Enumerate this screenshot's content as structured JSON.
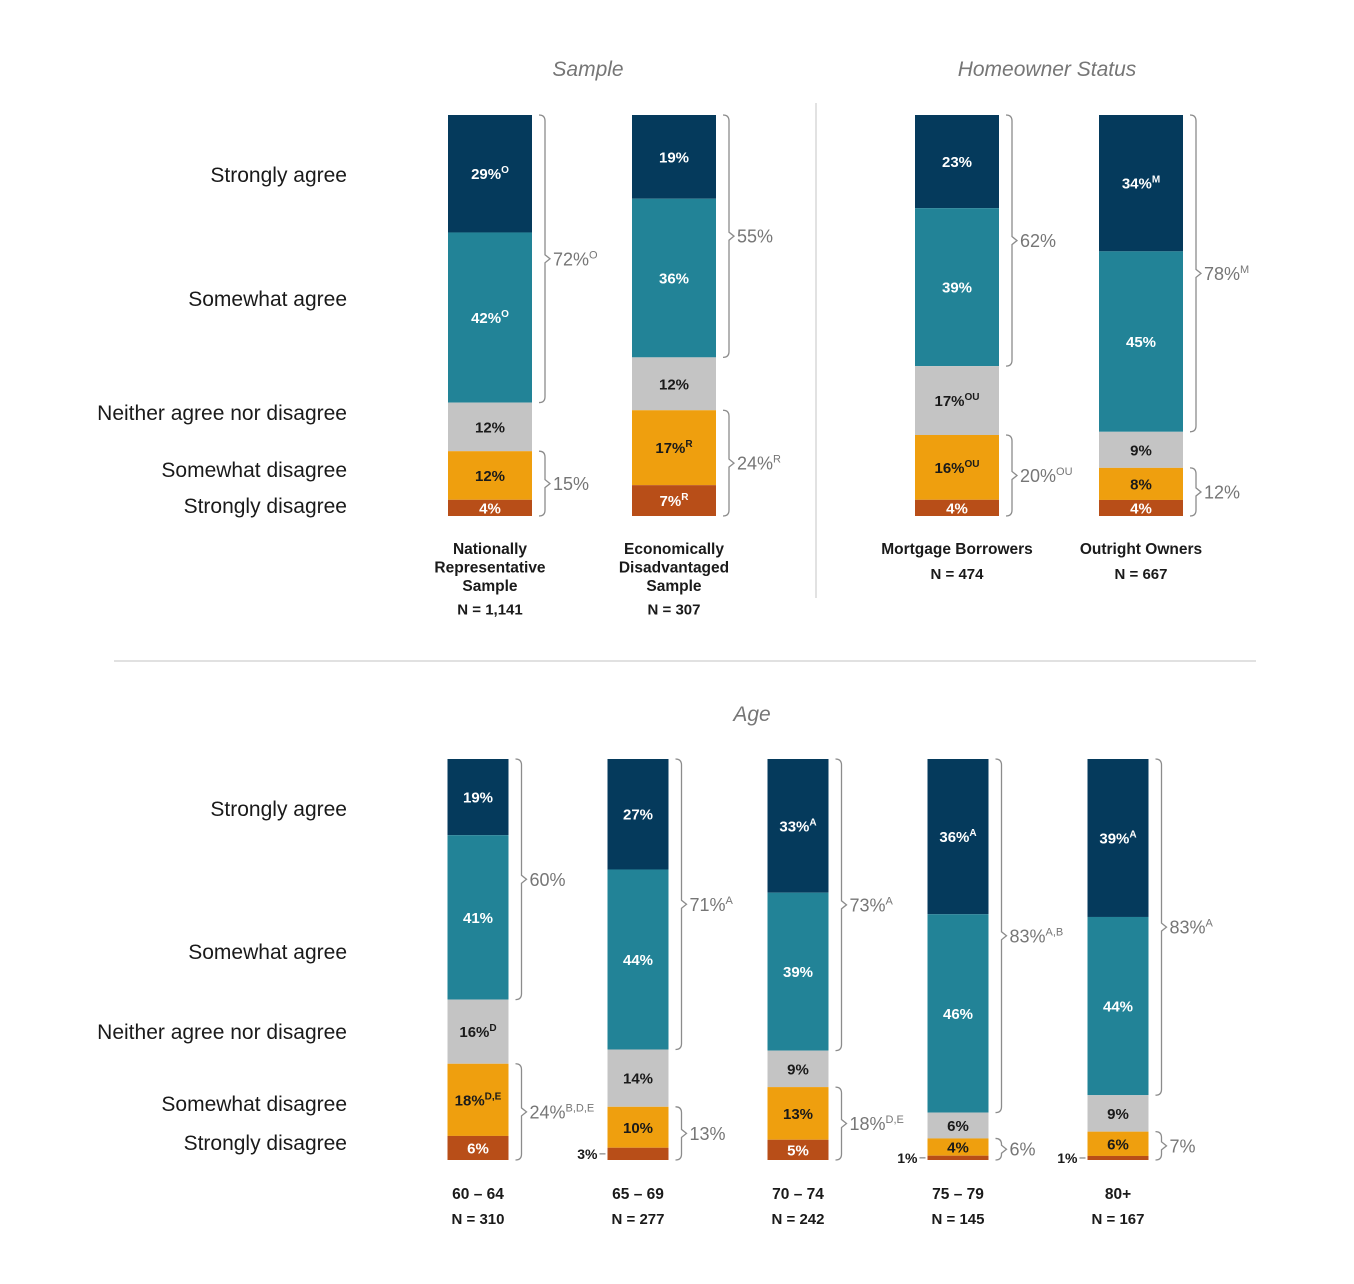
{
  "colors": {
    "strongly_agree": "#053a5c",
    "somewhat_agree": "#228397",
    "neither": "#c4c4c4",
    "somewhat_disagree": "#ef9f0e",
    "strongly_disagree": "#b84e18",
    "label_light": "#ffffff",
    "label_dark": "#1a1a1a"
  },
  "row_labels": {
    "strongly_agree": "Strongly agree",
    "somewhat_agree": "Somewhat agree",
    "neither": "Neither agree nor disagree",
    "somewhat_disagree": "Somewhat disagree",
    "strongly_disagree": "Strongly disagree"
  },
  "chart_data": [
    {
      "type": "bar",
      "stacked": true,
      "title": "Sample",
      "series_order": [
        "Strongly agree",
        "Somewhat agree",
        "Neither agree nor disagree",
        "Somewhat disagree",
        "Strongly disagree"
      ],
      "bars": [
        {
          "label": "Nationally Representative Sample",
          "n": "N = 1,141",
          "segments": [
            {
              "value": 29,
              "text": "29%",
              "sup": "O"
            },
            {
              "value": 42,
              "text": "42%",
              "sup": "O"
            },
            {
              "value": 12,
              "text": "12%",
              "sup": ""
            },
            {
              "value": 12,
              "text": "12%",
              "sup": ""
            },
            {
              "value": 4,
              "text": "4%",
              "sup": ""
            }
          ],
          "agree_total": {
            "text": "72%",
            "sup": "O"
          },
          "disagree_total": {
            "text": "15%",
            "sup": ""
          }
        },
        {
          "label": "Economically Disadvantaged Sample",
          "n": "N = 307",
          "segments": [
            {
              "value": 19,
              "text": "19%",
              "sup": ""
            },
            {
              "value": 36,
              "text": "36%",
              "sup": ""
            },
            {
              "value": 12,
              "text": "12%",
              "sup": ""
            },
            {
              "value": 17,
              "text": "17%",
              "sup": "R"
            },
            {
              "value": 7,
              "text": "7%",
              "sup": "R"
            }
          ],
          "agree_total": {
            "text": "55%",
            "sup": ""
          },
          "disagree_total": {
            "text": "24%",
            "sup": "R"
          }
        }
      ]
    },
    {
      "type": "bar",
      "stacked": true,
      "title": "Homeowner Status",
      "bars": [
        {
          "label": "Mortgage Borrowers",
          "n": "N = 474",
          "segments": [
            {
              "value": 23,
              "text": "23%",
              "sup": ""
            },
            {
              "value": 39,
              "text": "39%",
              "sup": ""
            },
            {
              "value": 17,
              "text": "17%",
              "sup": "OU"
            },
            {
              "value": 16,
              "text": "16%",
              "sup": "OU"
            },
            {
              "value": 4,
              "text": "4%",
              "sup": ""
            }
          ],
          "agree_total": {
            "text": "62%",
            "sup": ""
          },
          "disagree_total": {
            "text": "20%",
            "sup": "OU"
          }
        },
        {
          "label": "Outright Owners",
          "n": "N = 667",
          "segments": [
            {
              "value": 34,
              "text": "34%",
              "sup": "M"
            },
            {
              "value": 45,
              "text": "45%",
              "sup": ""
            },
            {
              "value": 9,
              "text": "9%",
              "sup": ""
            },
            {
              "value": 8,
              "text": "8%",
              "sup": ""
            },
            {
              "value": 4,
              "text": "4%",
              "sup": ""
            }
          ],
          "agree_total": {
            "text": "78%",
            "sup": "M"
          },
          "disagree_total": {
            "text": "12%",
            "sup": ""
          }
        }
      ]
    },
    {
      "type": "bar",
      "stacked": true,
      "title": "Age",
      "bars": [
        {
          "label": "60 – 64",
          "n": "N = 310",
          "segments": [
            {
              "value": 19,
              "text": "19%",
              "sup": ""
            },
            {
              "value": 41,
              "text": "41%",
              "sup": ""
            },
            {
              "value": 16,
              "text": "16%",
              "sup": "D"
            },
            {
              "value": 18,
              "text": "18%",
              "sup": "D,E"
            },
            {
              "value": 6,
              "text": "6%",
              "sup": ""
            }
          ],
          "agree_total": {
            "text": "60%",
            "sup": ""
          },
          "disagree_total": {
            "text": "24%",
            "sup": "B,D,E"
          }
        },
        {
          "label": "65 – 69",
          "n": "N = 277",
          "segments": [
            {
              "value": 27,
              "text": "27%",
              "sup": ""
            },
            {
              "value": 44,
              "text": "44%",
              "sup": ""
            },
            {
              "value": 14,
              "text": "14%",
              "sup": ""
            },
            {
              "value": 10,
              "text": "10%",
              "sup": ""
            },
            {
              "value": 3,
              "text": "3%",
              "sup": ""
            }
          ],
          "agree_total": {
            "text": "71%",
            "sup": "A"
          },
          "disagree_total": {
            "text": "13%",
            "sup": ""
          }
        },
        {
          "label": "70 – 74",
          "n": "N = 242",
          "segments": [
            {
              "value": 33,
              "text": "33%",
              "sup": "A"
            },
            {
              "value": 39,
              "text": "39%",
              "sup": ""
            },
            {
              "value": 9,
              "text": "9%",
              "sup": ""
            },
            {
              "value": 13,
              "text": "13%",
              "sup": ""
            },
            {
              "value": 5,
              "text": "5%",
              "sup": ""
            }
          ],
          "agree_total": {
            "text": "73%",
            "sup": "A"
          },
          "disagree_total": {
            "text": "18%",
            "sup": "D,E"
          }
        },
        {
          "label": "75 – 79",
          "n": "N = 145",
          "segments": [
            {
              "value": 36,
              "text": "36%",
              "sup": "A"
            },
            {
              "value": 46,
              "text": "46%",
              "sup": ""
            },
            {
              "value": 6,
              "text": "6%",
              "sup": ""
            },
            {
              "value": 4,
              "text": "4%",
              "sup": ""
            },
            {
              "value": 1,
              "text": "1%",
              "sup": ""
            }
          ],
          "agree_total": {
            "text": "83%",
            "sup": "A,B"
          },
          "disagree_total": {
            "text": "6%",
            "sup": ""
          }
        },
        {
          "label": "80+",
          "n": "N = 167",
          "segments": [
            {
              "value": 39,
              "text": "39%",
              "sup": "A"
            },
            {
              "value": 44,
              "text": "44%",
              "sup": ""
            },
            {
              "value": 9,
              "text": "9%",
              "sup": ""
            },
            {
              "value": 6,
              "text": "6%",
              "sup": ""
            },
            {
              "value": 1,
              "text": "1%",
              "sup": ""
            }
          ],
          "agree_total": {
            "text": "83%",
            "sup": "A"
          },
          "disagree_total": {
            "text": "7%",
            "sup": ""
          }
        }
      ]
    }
  ]
}
